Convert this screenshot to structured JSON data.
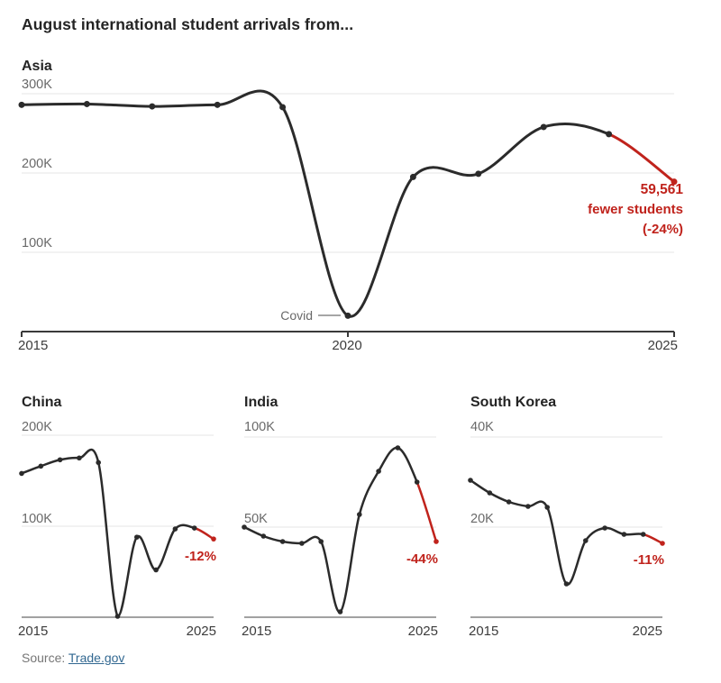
{
  "page": {
    "title": "August international student arrivals from...",
    "source_label": "Source:",
    "source_link": "Trade.gov"
  },
  "colors": {
    "line": "#2b2b2b",
    "accent_red": "#c0231c",
    "grid": "#e4e4e4",
    "axis_main": "#3a3a3a",
    "axis_small": "#828282",
    "link": "#326891"
  },
  "chart_data": [
    {
      "id": "asia",
      "type": "line",
      "title": "Asia",
      "unit": "thousands of students",
      "x": [
        2015,
        2016,
        2017,
        2018,
        2019,
        2020,
        2021,
        2022,
        2023,
        2024,
        2025
      ],
      "values_thousands": [
        286,
        287,
        284,
        286,
        283,
        20,
        195,
        199,
        258,
        249,
        189
      ],
      "red_from_year": 2024,
      "ylim_thousands": [
        0,
        300
      ],
      "yticks": [
        {
          "value": 300,
          "label": "300K"
        },
        {
          "value": 200,
          "label": "200K"
        },
        {
          "value": 100,
          "label": "100K"
        }
      ],
      "xticks": [
        {
          "year": 2015,
          "label": "2015"
        },
        {
          "year": 2020,
          "label": "2020"
        },
        {
          "year": 2025,
          "label": "2025"
        }
      ],
      "annotations": {
        "covid": "Covid",
        "covid_year": 2020,
        "callout_value": "59,561",
        "callout_desc": "fewer students",
        "callout_pct": "(-24%)"
      }
    },
    {
      "id": "china",
      "type": "line",
      "title": "China",
      "unit": "thousands of students",
      "x": [
        2015,
        2016,
        2017,
        2018,
        2019,
        2020,
        2021,
        2022,
        2023,
        2024,
        2025
      ],
      "values_thousands": [
        158,
        166,
        173,
        175,
        170,
        1,
        88,
        52,
        97,
        98,
        86
      ],
      "red_from_year": 2024,
      "ylim_thousands": [
        0,
        200
      ],
      "yticks": [
        {
          "value": 200,
          "label": "200K"
        },
        {
          "value": 100,
          "label": "100K"
        }
      ],
      "xticks": [
        {
          "year": 2015,
          "label": "2015"
        },
        {
          "year": 2025,
          "label": "2025"
        }
      ],
      "annotations": {
        "change_pct": "-12%"
      }
    },
    {
      "id": "india",
      "type": "line",
      "title": "India",
      "unit": "thousands of students",
      "x": [
        2015,
        2016,
        2017,
        2018,
        2019,
        2020,
        2021,
        2022,
        2023,
        2024,
        2025
      ],
      "values_thousands": [
        50,
        45,
        42,
        41,
        42,
        3,
        57,
        81,
        94,
        75,
        42
      ],
      "red_from_year": 2024,
      "ylim_thousands": [
        0,
        100
      ],
      "yticks": [
        {
          "value": 100,
          "label": "100K"
        },
        {
          "value": 50,
          "label": "50K"
        }
      ],
      "xticks": [
        {
          "year": 2015,
          "label": "2015"
        },
        {
          "year": 2025,
          "label": "2025"
        }
      ],
      "annotations": {
        "change_pct": "-44%"
      }
    },
    {
      "id": "korea",
      "type": "line",
      "title": "South Korea",
      "unit": "thousands of students",
      "x": [
        2015,
        2016,
        2017,
        2018,
        2019,
        2020,
        2021,
        2022,
        2023,
        2024,
        2025
      ],
      "values_thousands": [
        30.4,
        27.6,
        25.6,
        24.6,
        24.4,
        7.4,
        17,
        19.8,
        18.4,
        18.4,
        16.4
      ],
      "red_from_year": 2024,
      "ylim_thousands": [
        0,
        40
      ],
      "yticks": [
        {
          "value": 40,
          "label": "40K"
        },
        {
          "value": 20,
          "label": "20K"
        }
      ],
      "xticks": [
        {
          "year": 2015,
          "label": "2015"
        },
        {
          "year": 2025,
          "label": "2025"
        }
      ],
      "annotations": {
        "change_pct": "-11%"
      }
    }
  ]
}
